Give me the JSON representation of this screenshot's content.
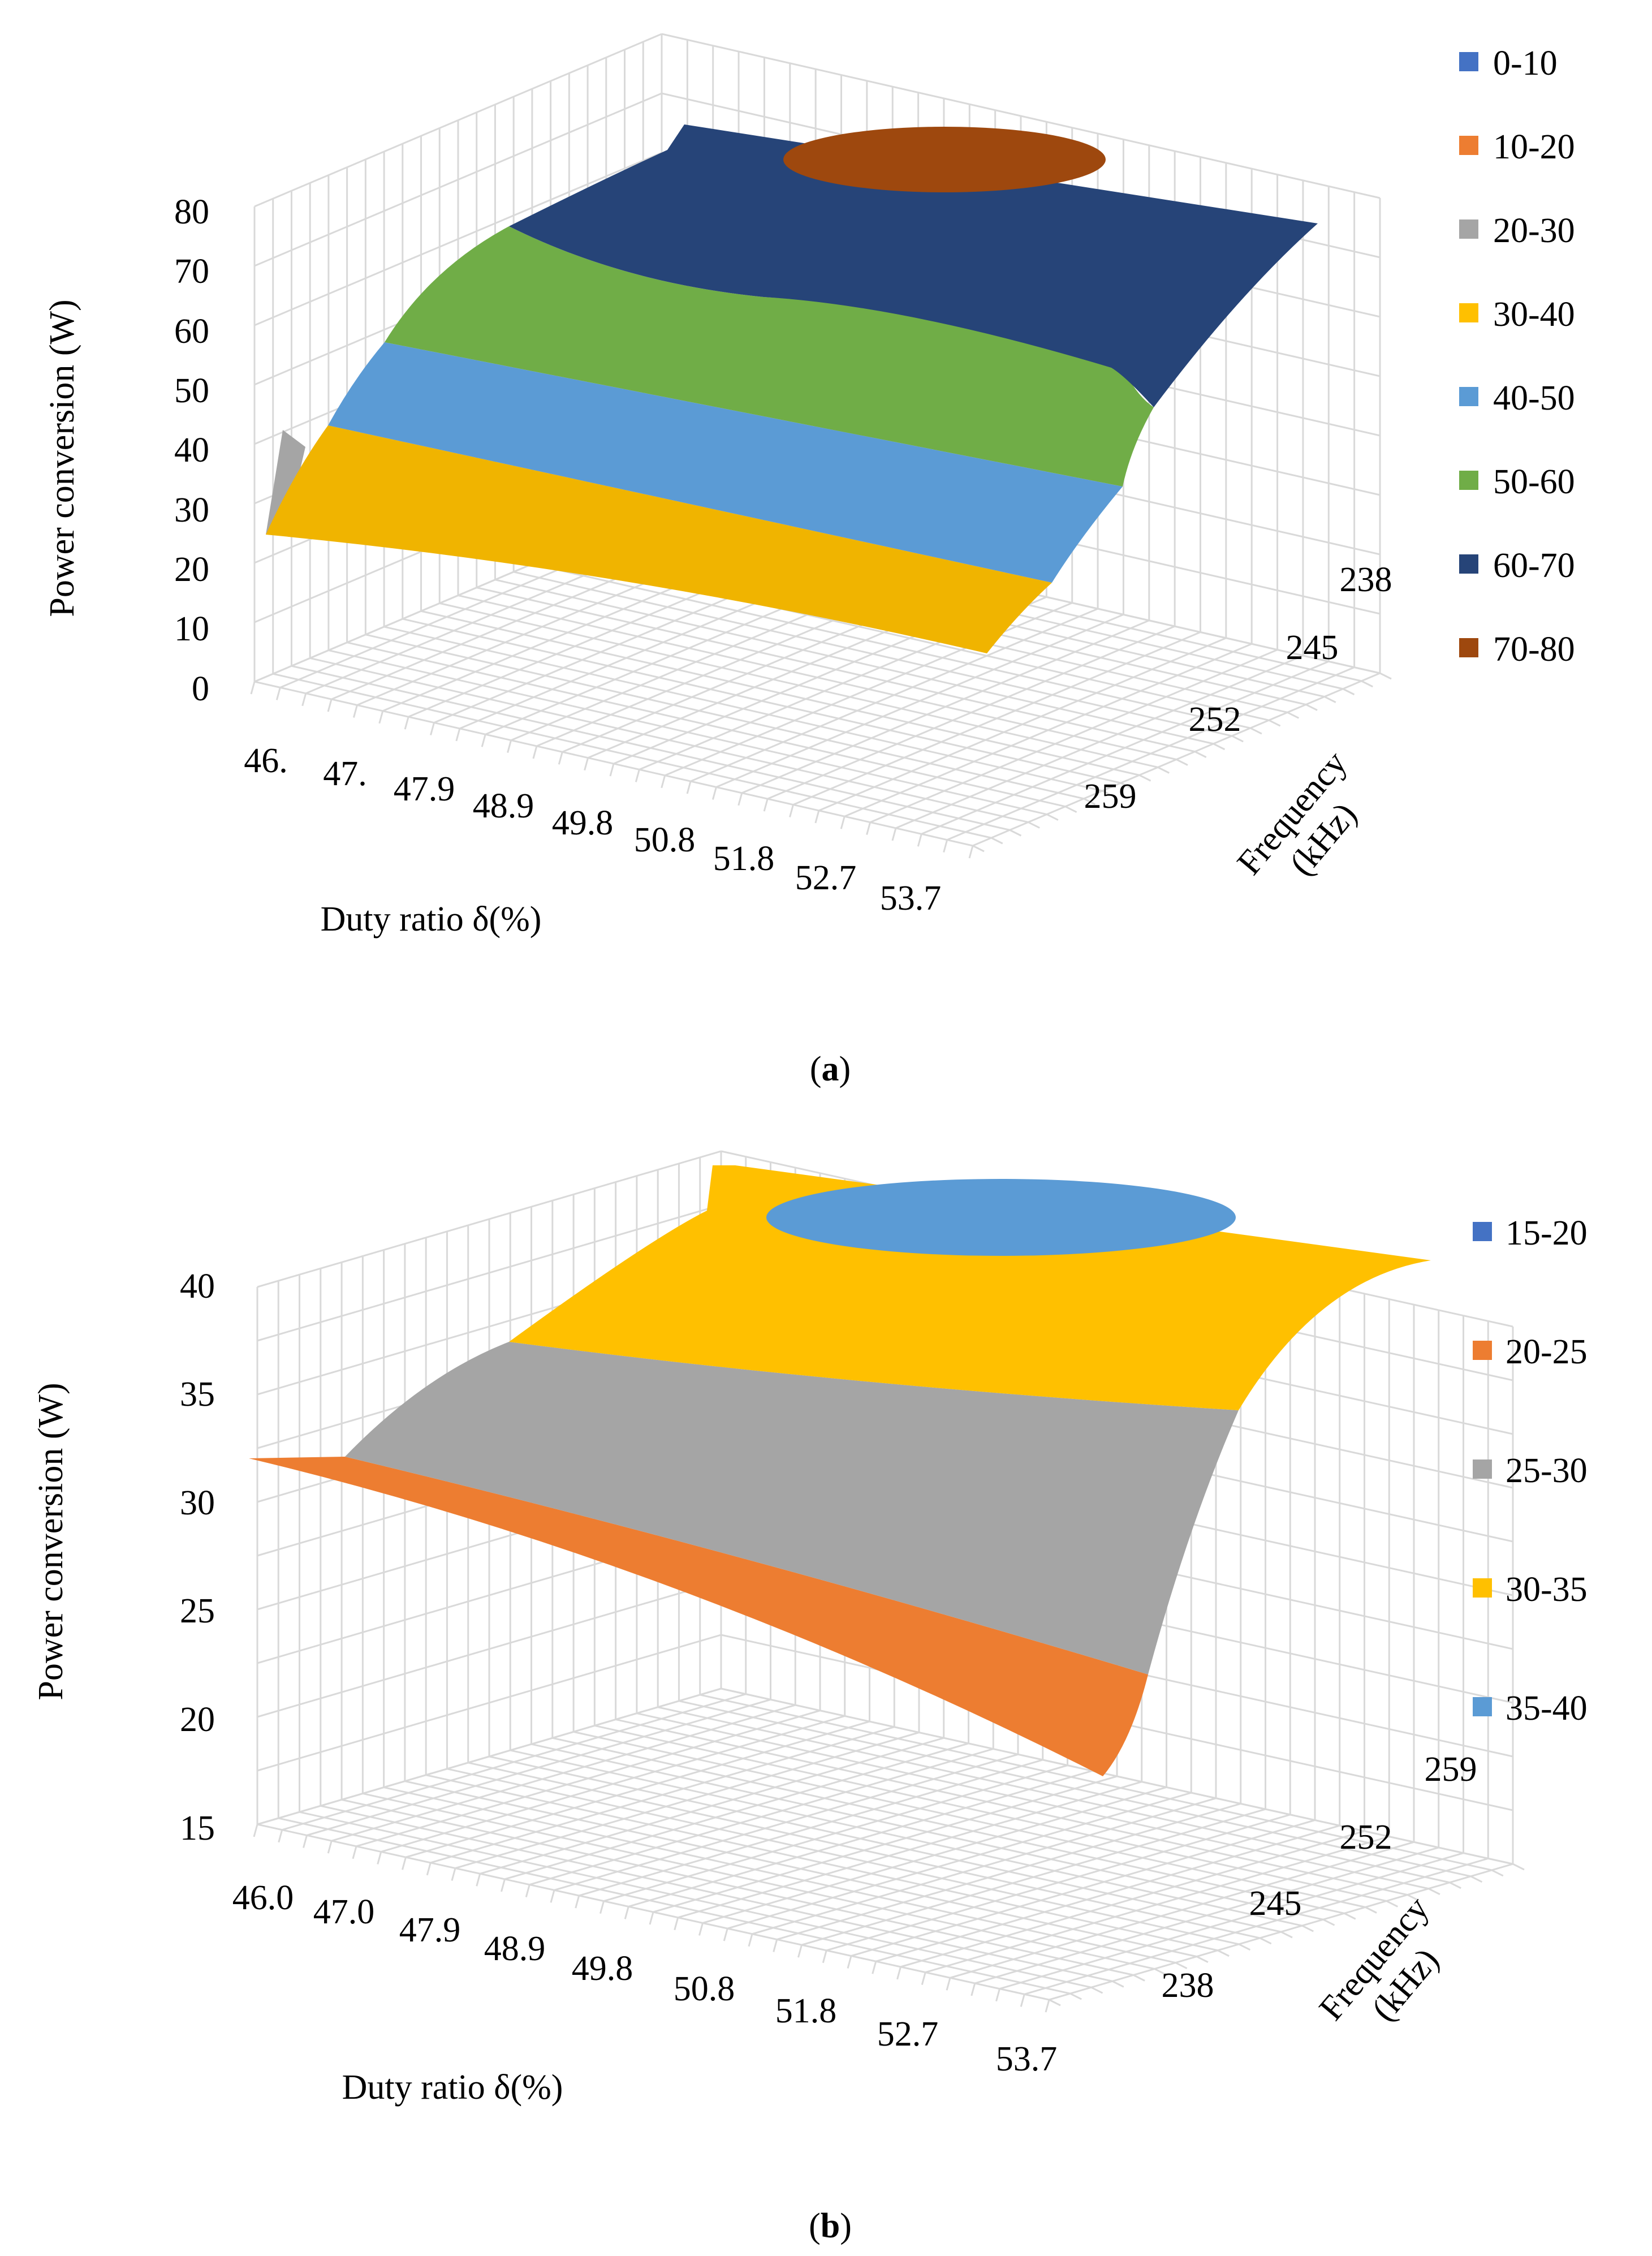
{
  "chart_data": [
    {
      "panel": "a",
      "type": "surface",
      "caption_label": "a",
      "zlabel": "Power conversion (W)",
      "xlabel": "Duty ratio δ(%)",
      "ylabel": "Frequency (kHz)",
      "ylabel_lines": [
        "Frequency",
        "(kHz)"
      ],
      "z_ticks": [
        "0",
        "10",
        "20",
        "30",
        "40",
        "50",
        "60",
        "70",
        "80"
      ],
      "zlim": [
        0,
        80
      ],
      "x_ticks": [
        "46.",
        "47.",
        "47.9",
        "48.9",
        "49.8",
        "50.8",
        "51.8",
        "52.7",
        "53.7"
      ],
      "y_ticks": [
        "238",
        "245",
        "252",
        "259"
      ],
      "legend": [
        {
          "label": "0-10",
          "color": "#4472C4"
        },
        {
          "label": "10-20",
          "color": "#ED7D31"
        },
        {
          "label": "20-30",
          "color": "#A5A5A5"
        },
        {
          "label": "30-40",
          "color": "#FFC000"
        },
        {
          "label": "40-50",
          "color": "#5B9BD5"
        },
        {
          "label": "50-60",
          "color": "#70AD47"
        },
        {
          "label": "60-70",
          "color": "#264478"
        },
        {
          "label": "70-80",
          "color": "#9E480E"
        }
      ]
    },
    {
      "panel": "b",
      "type": "surface",
      "caption_label": "b",
      "zlabel": "Power conversion (W)",
      "xlabel": "Duty ratio δ(%)",
      "ylabel": "Frequency (kHz)",
      "ylabel_lines": [
        "Frequency",
        "(kHz)"
      ],
      "z_ticks": [
        "15",
        "20",
        "25",
        "30",
        "35",
        "40"
      ],
      "zlim": [
        15,
        40
      ],
      "x_ticks": [
        "46.0",
        "47.0",
        "47.9",
        "48.9",
        "49.8",
        "50.8",
        "51.8",
        "52.7",
        "53.7"
      ],
      "y_ticks": [
        "238",
        "245",
        "252",
        "259"
      ],
      "legend": [
        {
          "label": "15-20",
          "color": "#4472C4"
        },
        {
          "label": "20-25",
          "color": "#ED7D31"
        },
        {
          "label": "25-30",
          "color": "#A5A5A5"
        },
        {
          "label": "30-35",
          "color": "#FFC000"
        },
        {
          "label": "35-40",
          "color": "#5B9BD5"
        }
      ]
    }
  ]
}
